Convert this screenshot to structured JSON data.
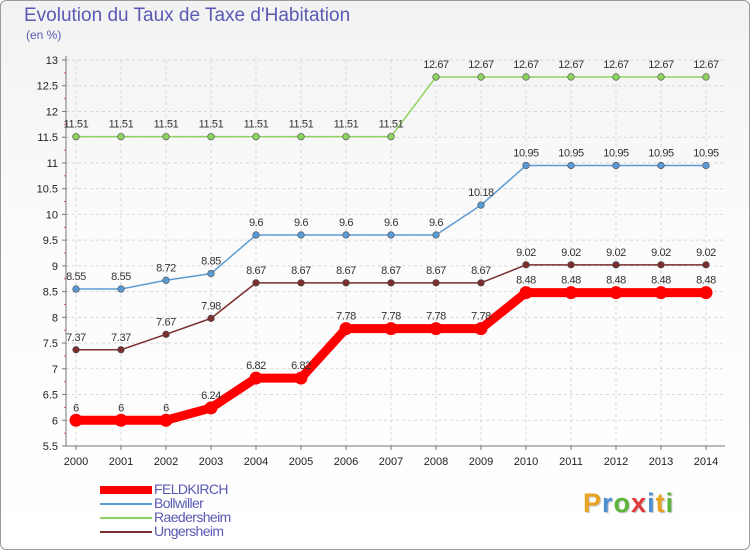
{
  "chart_data": {
    "type": "line",
    "title": "Evolution du Taux de Taxe d'Habitation",
    "subtitle": "(en %)",
    "x": [
      "2000",
      "2001",
      "2002",
      "2003",
      "2004",
      "2005",
      "2006",
      "2007",
      "2008",
      "2009",
      "2010",
      "2011",
      "2012",
      "2013",
      "2014"
    ],
    "ylim": [
      5.5,
      13
    ],
    "yticks": [
      "5.5",
      "6",
      "6.5",
      "7",
      "7.5",
      "8",
      "8.5",
      "9",
      "9.5",
      "10",
      "10.5",
      "11",
      "11.5",
      "12",
      "12.5",
      "13"
    ],
    "grid": true,
    "legend_position": "bottom-left",
    "series": [
      {
        "name": "FELDKIRCH",
        "color": "#ff0000",
        "values": [
          6,
          6,
          6,
          6.24,
          6.82,
          6.82,
          7.78,
          7.78,
          7.78,
          7.78,
          8.48,
          8.48,
          8.48,
          8.48,
          8.48
        ],
        "labels": [
          "6",
          "6",
          "6",
          "6.24",
          "6.82",
          "6.82",
          "7.78",
          "7.78",
          "7.78",
          "7.78",
          "8.48",
          "8.48",
          "8.48",
          "8.48",
          "8.48"
        ]
      },
      {
        "name": "Bollwiller",
        "color": "#5b9bd5",
        "values": [
          8.55,
          8.55,
          8.72,
          8.85,
          9.6,
          9.6,
          9.6,
          9.6,
          9.6,
          10.18,
          10.95,
          10.95,
          10.95,
          10.95,
          10.95
        ],
        "labels": [
          "8.55",
          "8.55",
          "8.72",
          "8.85",
          "9.6",
          "9.6",
          "9.6",
          "9.6",
          "9.6",
          "10.18",
          "10.95",
          "10.95",
          "10.95",
          "10.95",
          "10.95"
        ]
      },
      {
        "name": "Raedersheim",
        "color": "#8dd35f",
        "values": [
          11.51,
          11.51,
          11.51,
          11.51,
          11.51,
          11.51,
          11.51,
          11.51,
          12.67,
          12.67,
          12.67,
          12.67,
          12.67,
          12.67,
          12.67
        ],
        "labels": [
          "11.51",
          "11.51",
          "11.51",
          "11.51",
          "11.51",
          "11.51",
          "11.51",
          "11.51",
          "12.67",
          "12.67",
          "12.67",
          "12.67",
          "12.67",
          "12.67",
          "12.67"
        ]
      },
      {
        "name": "Ungersheim",
        "color": "#7b2e2e",
        "values": [
          7.37,
          7.37,
          7.67,
          7.98,
          8.67,
          8.67,
          8.67,
          8.67,
          8.67,
          8.67,
          9.02,
          9.02,
          9.02,
          9.02,
          9.02
        ],
        "labels": [
          "7.37",
          "7.37",
          "7.67",
          "7.98",
          "8.67",
          "8.67",
          "8.67",
          "8.67",
          "8.67",
          "8.67",
          "9.02",
          "9.02",
          "9.02",
          "9.02",
          "9.02"
        ]
      }
    ]
  },
  "logo": {
    "letters": [
      "P",
      "r",
      "o",
      "x",
      "i",
      "t",
      "i"
    ],
    "colors": [
      "#e8a320",
      "#4a90d0",
      "#5fb43c",
      "#e03a3a",
      "#4a90d0",
      "#e8a320",
      "#5fb43c"
    ]
  }
}
